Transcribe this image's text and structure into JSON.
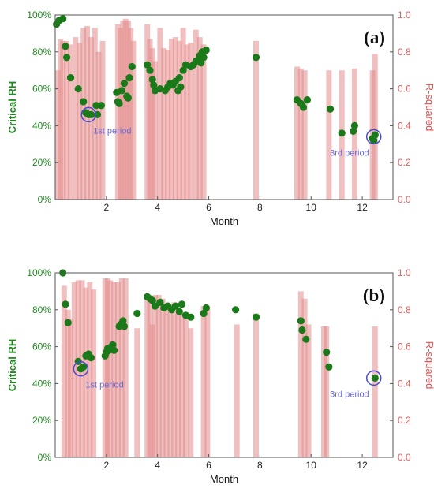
{
  "chart_data": [
    {
      "type": "bar",
      "panel_label": "(a)",
      "xlabel": "Month",
      "ylabel": "Critical RH",
      "y2label": "R-squared",
      "xlim": [
        0,
        13.2
      ],
      "ylim": [
        0,
        100
      ],
      "y2lim": [
        0,
        1.0
      ],
      "x_ticks": [
        "2",
        "4",
        "6",
        "8",
        "10",
        "12"
      ],
      "y_ticks": [
        "0%",
        "20%",
        "40%",
        "60%",
        "80%",
        "100%"
      ],
      "y2_ticks": [
        "0.0",
        "0.2",
        "0.4",
        "0.6",
        "0.8",
        "1.0"
      ],
      "annotations": [
        {
          "text": "1st period",
          "x": 1.3,
          "y": 46
        },
        {
          "text": "3rd period",
          "x": 12.45,
          "y": 34
        }
      ],
      "series": [
        {
          "kind": "bar",
          "axis": "right",
          "color": "#e48a8a",
          "x": [
            0.1,
            0.2,
            0.3,
            0.45,
            0.6,
            0.8,
            0.95,
            1.1,
            1.25,
            1.4,
            1.55,
            1.7,
            1.85,
            2.45,
            2.55,
            2.65,
            2.75,
            2.85,
            2.95,
            3.05,
            3.6,
            3.7,
            3.8,
            3.9,
            4.1,
            4.25,
            4.4,
            4.55,
            4.7,
            4.85,
            5.0,
            5.15,
            5.3,
            5.5,
            5.65,
            5.8,
            7.85,
            9.45,
            9.6,
            9.75,
            10.7,
            11.2,
            11.7,
            12.4,
            12.5
          ],
          "values": [
            0.7,
            0.87,
            0.86,
            0.86,
            0.84,
            0.88,
            0.85,
            0.93,
            0.94,
            0.88,
            0.93,
            0.8,
            0.86,
            0.95,
            0.93,
            0.97,
            0.98,
            0.97,
            0.93,
            0.86,
            0.95,
            0.87,
            0.82,
            0.75,
            0.93,
            0.82,
            0.81,
            0.87,
            0.88,
            0.86,
            0.93,
            0.84,
            0.85,
            0.92,
            0.88,
            0.84,
            0.86,
            0.72,
            0.71,
            0.7,
            0.7,
            0.7,
            0.71,
            0.7,
            0.79
          ]
        },
        {
          "kind": "scatter",
          "axis": "left",
          "color": "#1a7a1a",
          "x": [
            0.05,
            0.15,
            0.3,
            0.4,
            0.45,
            0.6,
            0.9,
            1.1,
            1.2,
            1.3,
            1.4,
            1.6,
            1.65,
            1.8,
            2.4,
            2.45,
            2.5,
            2.6,
            2.7,
            2.8,
            2.85,
            2.9,
            3.0,
            3.6,
            3.7,
            3.8,
            3.85,
            3.9,
            4.1,
            4.3,
            4.4,
            4.5,
            4.6,
            4.7,
            4.8,
            4.85,
            4.9,
            5.0,
            5.1,
            5.3,
            5.4,
            5.5,
            5.6,
            5.65,
            5.7,
            5.75,
            5.8,
            5.9,
            7.85,
            9.45,
            9.6,
            9.7,
            9.85,
            10.75,
            11.2,
            11.65,
            11.7,
            12.4,
            12.45,
            12.5
          ],
          "values": [
            95,
            97,
            98,
            83,
            77,
            66,
            60,
            53,
            47,
            46,
            46,
            51,
            46,
            51,
            58,
            53,
            52,
            59,
            63,
            56,
            55,
            66,
            72,
            73,
            70,
            65,
            62,
            59,
            60,
            59,
            61,
            63,
            62,
            64,
            59,
            66,
            61,
            70,
            73,
            72,
            73,
            75,
            76,
            78,
            74,
            80,
            77,
            81,
            77,
            54,
            52,
            50,
            54,
            49,
            36,
            37,
            40,
            33,
            32,
            35
          ]
        }
      ]
    },
    {
      "type": "bar",
      "panel_label": "(b)",
      "xlabel": "Month",
      "ylabel": "Critical RH",
      "y2label": "R-squared",
      "xlim": [
        0,
        13.2
      ],
      "ylim": [
        0,
        100
      ],
      "y2lim": [
        0,
        1.0
      ],
      "x_ticks": [
        "2",
        "4",
        "6",
        "8",
        "10",
        "12"
      ],
      "y_ticks": [
        "0%",
        "20%",
        "40%",
        "60%",
        "80%",
        "100%"
      ],
      "y2_ticks": [
        "0.0",
        "0.2",
        "0.4",
        "0.6",
        "0.8",
        "1.0"
      ],
      "annotations": [
        {
          "text": "1st period",
          "x": 1.0,
          "y": 48
        },
        {
          "text": "3rd period",
          "x": 12.45,
          "y": 43
        }
      ],
      "series": [
        {
          "kind": "bar",
          "axis": "right",
          "color": "#e48a8a",
          "x": [
            0.35,
            0.5,
            0.6,
            0.75,
            0.9,
            1.05,
            1.2,
            1.35,
            1.5,
            1.95,
            2.05,
            2.15,
            2.3,
            2.45,
            2.6,
            2.75,
            3.2,
            3.6,
            3.7,
            3.8,
            3.9,
            4.05,
            4.2,
            4.35,
            4.5,
            4.65,
            4.8,
            4.95,
            5.1,
            5.3,
            5.8,
            5.95,
            7.1,
            7.85,
            9.6,
            9.75,
            9.9,
            10.5,
            10.6,
            12.5
          ],
          "values": [
            0.93,
            0.8,
            0.75,
            0.95,
            0.96,
            0.96,
            0.92,
            0.95,
            0.91,
            0.97,
            0.97,
            0.96,
            0.95,
            0.95,
            0.97,
            0.97,
            0.7,
            0.87,
            0.85,
            0.72,
            0.88,
            0.88,
            0.86,
            0.81,
            0.83,
            0.84,
            0.78,
            0.78,
            0.76,
            0.7,
            0.82,
            0.82,
            0.72,
            0.78,
            0.9,
            0.86,
            0.72,
            0.71,
            0.71,
            0.71
          ]
        },
        {
          "kind": "scatter",
          "axis": "left",
          "color": "#1a7a1a",
          "x": [
            0.3,
            0.4,
            0.5,
            0.9,
            1.0,
            1.1,
            1.2,
            1.3,
            1.4,
            1.95,
            2.0,
            2.05,
            2.1,
            2.2,
            2.25,
            2.3,
            2.5,
            2.55,
            2.65,
            2.7,
            3.2,
            3.6,
            3.7,
            3.8,
            3.9,
            4.1,
            4.25,
            4.4,
            4.55,
            4.7,
            4.85,
            4.95,
            5.1,
            5.3,
            5.8,
            5.9,
            7.05,
            7.85,
            9.6,
            9.65,
            9.8,
            10.6,
            10.7,
            12.5
          ],
          "values": [
            100,
            83,
            73,
            52,
            48,
            49,
            55,
            56,
            54,
            55,
            57,
            59,
            58,
            60,
            61,
            58,
            71,
            72,
            74,
            71,
            78,
            87,
            86,
            85,
            82,
            84,
            81,
            82,
            80,
            82,
            79,
            83,
            77,
            76,
            78,
            81,
            80,
            76,
            74,
            69,
            64,
            57,
            49,
            43
          ]
        }
      ]
    }
  ]
}
